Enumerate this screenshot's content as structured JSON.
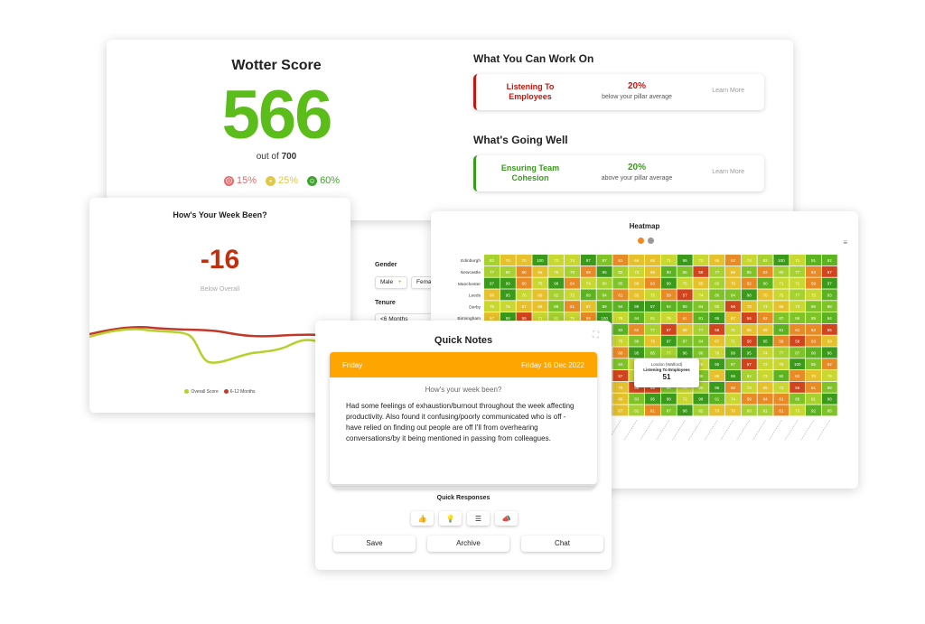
{
  "score": {
    "title": "Wotter Score",
    "value": "566",
    "out_of_prefix": "out of",
    "out_of_value": "700",
    "breakdown": [
      {
        "label": "15%",
        "color": "#e46a6a",
        "icon": "sad-face-icon"
      },
      {
        "label": "25%",
        "color": "#e2c84a",
        "icon": "neutral-face-icon"
      },
      {
        "label": "60%",
        "color": "#3ea52b",
        "icon": "happy-face-icon"
      }
    ]
  },
  "work_on": {
    "title": "What You Can Work On",
    "pillar": "Listening To Employees",
    "pct": "20%",
    "sub": "below your pillar average",
    "learn": "Learn More",
    "color": "#c2180f"
  },
  "going_well": {
    "title": "What's Going Well",
    "pillar": "Ensuring Team Cohesion",
    "pct": "20%",
    "sub": "above your pillar average",
    "learn": "Learn More",
    "color": "#3a9a1a"
  },
  "week": {
    "title": "How's Your Week Been?",
    "value": "-16",
    "sub": "Below Overall",
    "legend": [
      {
        "name": "Overall Score",
        "color": "#b5d12a"
      },
      {
        "name": "6-12 Months",
        "color": "#c0392b"
      }
    ]
  },
  "filters": {
    "gender_label": "Gender",
    "gender_options": [
      "Male",
      "Fema"
    ],
    "tenure_label": "Tenure",
    "tenure_value": "<6 Months"
  },
  "heatmap": {
    "title": "Heatmap",
    "rows_visible": [
      "Edinburgh",
      "Newcastle",
      "Manchester",
      "Leeds",
      "Derby",
      "Birmingham"
    ],
    "row1_values": [
      82,
      70,
      70,
      100,
      73,
      74,
      97,
      87,
      61,
      66,
      65,
      71,
      96,
      72,
      65,
      62,
      74,
      82,
      100,
      71,
      91,
      92
    ],
    "tooltip": {
      "city": "London (Watford)",
      "pillar": "Listening To Employees",
      "value": "51"
    }
  },
  "notes": {
    "title": "Quick Notes",
    "day": "Friday",
    "date": "Friday 16 Dec 2022",
    "question": "How's your week been?",
    "body": "Had some feelings of exhaustion/burnout throughout the week affecting productivity. Also found it confusing/poorly communicated who is off - have relied on finding out people are off I'll from overhearing conversations/by it being mentioned in passing from colleagues.",
    "quick_title": "Quick Responses",
    "quick_icons": [
      "thumbs-up-icon",
      "lightbulb-icon",
      "checklist-icon",
      "megaphone-icon"
    ],
    "buttons": {
      "save": "Save",
      "archive": "Archive",
      "chat": "Chat"
    }
  }
}
